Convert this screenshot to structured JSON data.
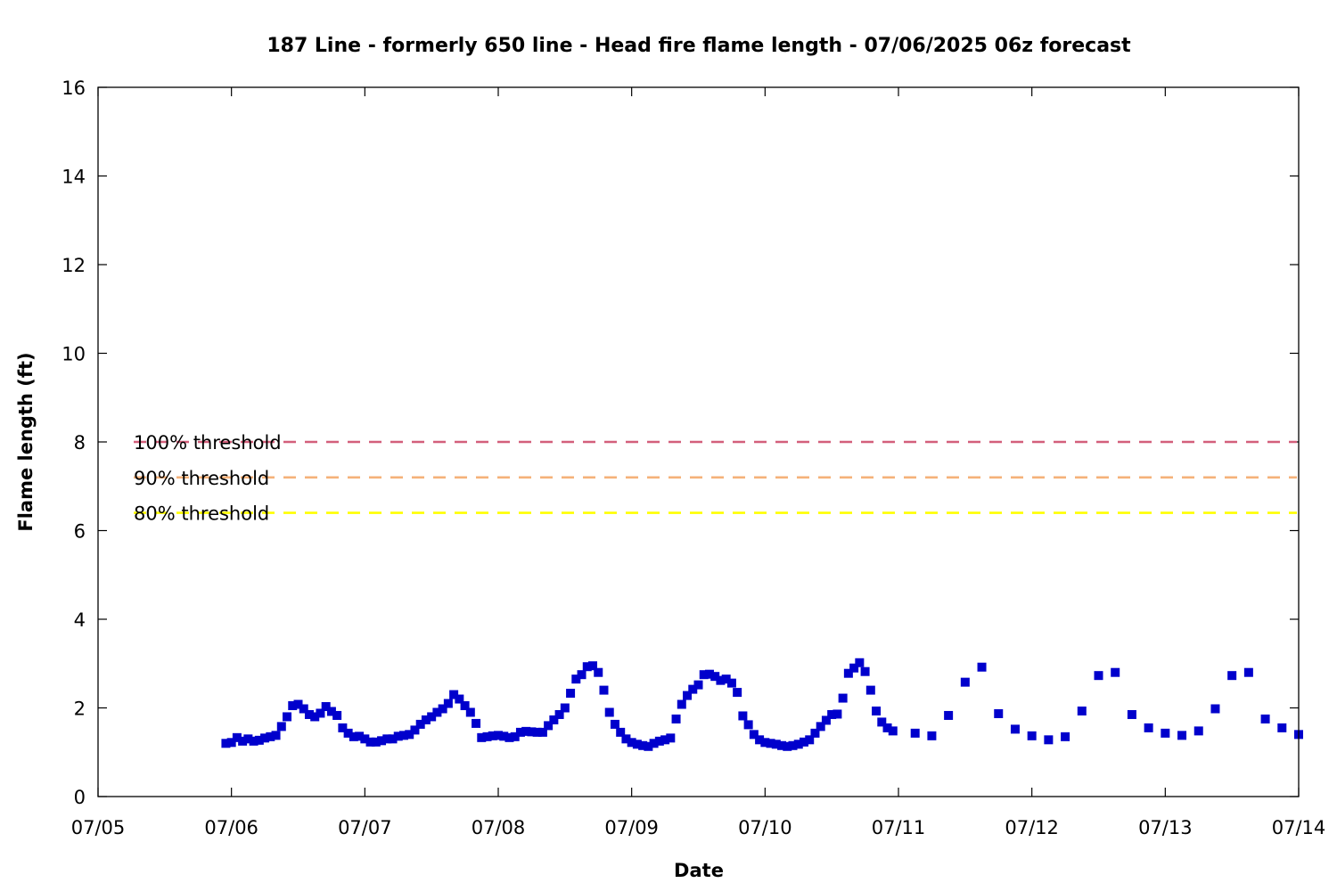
{
  "chart_data": {
    "type": "scatter",
    "title": "187 Line - formerly 650 line - Head fire flame length - 07/06/2025 06z forecast",
    "xlabel": "Date",
    "ylabel": "Flame length (ft)",
    "xlim": [
      "07/05 00z",
      "07/14 00z"
    ],
    "ylim": [
      0,
      16
    ],
    "x_tick_labels": [
      "07/05",
      "07/06",
      "07/07",
      "07/08",
      "07/09",
      "07/10",
      "07/11",
      "07/12",
      "07/13",
      "07/14"
    ],
    "y_tick_labels": [
      "0",
      "2",
      "4",
      "6",
      "8",
      "10",
      "12",
      "14",
      "16"
    ],
    "y_ticks": [
      0,
      2,
      4,
      6,
      8,
      10,
      12,
      14,
      16
    ],
    "grid": false,
    "thresholds": [
      {
        "label": "100% threshold",
        "value": 8.0,
        "color": "#d35f7b"
      },
      {
        "label": "90% threshold",
        "value": 7.2,
        "color": "#f5b27a"
      },
      {
        "label": "80% threshold",
        "value": 6.4,
        "color": "#ffff00"
      }
    ],
    "series": [
      {
        "color": "#0000cc",
        "marker": "square",
        "x_dates": [
          "07/05 23z",
          "07/06 00z",
          "07/06 01z",
          "07/06 02z",
          "07/06 03z",
          "07/06 04z",
          "07/06 05z",
          "07/06 06z",
          "07/06 07z",
          "07/06 08z",
          "07/06 09z",
          "07/06 10z",
          "07/06 11z",
          "07/06 12z",
          "07/06 13z",
          "07/06 14z",
          "07/06 15z",
          "07/06 16z",
          "07/06 17z",
          "07/06 18z",
          "07/06 19z",
          "07/06 20z",
          "07/06 21z",
          "07/06 22z",
          "07/06 23z",
          "07/07 00z",
          "07/07 01z",
          "07/07 02z",
          "07/07 03z",
          "07/07 04z",
          "07/07 05z",
          "07/07 06z",
          "07/07 07z",
          "07/07 08z",
          "07/07 09z",
          "07/07 10z",
          "07/07 11z",
          "07/07 12z",
          "07/07 13z",
          "07/07 14z",
          "07/07 15z",
          "07/07 16z",
          "07/07 17z",
          "07/07 18z",
          "07/07 19z",
          "07/07 20z",
          "07/07 21z",
          "07/07 22z",
          "07/07 23z",
          "07/08 00z",
          "07/08 01z",
          "07/08 02z",
          "07/08 03z",
          "07/08 04z",
          "07/08 05z",
          "07/08 06z",
          "07/08 07z",
          "07/08 08z",
          "07/08 09z",
          "07/08 10z",
          "07/08 11z",
          "07/08 12z",
          "07/08 13z",
          "07/08 14z",
          "07/08 15z",
          "07/08 16z",
          "07/08 17z",
          "07/08 18z",
          "07/08 19z",
          "07/08 20z",
          "07/08 21z",
          "07/08 22z",
          "07/08 23z",
          "07/09 00z",
          "07/09 01z",
          "07/09 02z",
          "07/09 03z",
          "07/09 04z",
          "07/09 05z",
          "07/09 06z",
          "07/09 07z",
          "07/09 08z",
          "07/09 09z",
          "07/09 10z",
          "07/09 11z",
          "07/09 12z",
          "07/09 13z",
          "07/09 14z",
          "07/09 15z",
          "07/09 16z",
          "07/09 17z",
          "07/09 18z",
          "07/09 19z",
          "07/09 20z",
          "07/09 21z",
          "07/09 22z",
          "07/09 23z",
          "07/10 00z",
          "07/10 01z",
          "07/10 02z",
          "07/10 03z",
          "07/10 04z",
          "07/10 05z",
          "07/10 06z",
          "07/10 07z",
          "07/10 08z",
          "07/10 09z",
          "07/10 10z",
          "07/10 11z",
          "07/10 12z",
          "07/10 13z",
          "07/10 14z",
          "07/10 15z",
          "07/10 16z",
          "07/10 17z",
          "07/10 18z",
          "07/10 19z",
          "07/10 20z",
          "07/10 21z",
          "07/10 22z",
          "07/10 23z",
          "07/11 03z",
          "07/11 06z",
          "07/11 09z",
          "07/11 12z",
          "07/11 15z",
          "07/11 18z",
          "07/11 21z",
          "07/12 00z",
          "07/12 03z",
          "07/12 06z",
          "07/12 09z",
          "07/12 12z",
          "07/12 15z",
          "07/12 18z",
          "07/12 21z",
          "07/13 00z",
          "07/13 03z",
          "07/13 06z",
          "07/13 09z",
          "07/13 12z",
          "07/13 15z",
          "07/13 18z",
          "07/13 21z",
          "07/14 00z"
        ],
        "values": [
          1.2,
          1.22,
          1.33,
          1.25,
          1.3,
          1.25,
          1.27,
          1.32,
          1.35,
          1.38,
          1.58,
          1.8,
          2.05,
          2.08,
          1.98,
          1.85,
          1.8,
          1.88,
          2.03,
          1.92,
          1.83,
          1.55,
          1.43,
          1.35,
          1.36,
          1.3,
          1.23,
          1.23,
          1.26,
          1.3,
          1.3,
          1.36,
          1.38,
          1.4,
          1.5,
          1.63,
          1.73,
          1.8,
          1.9,
          1.98,
          2.1,
          2.3,
          2.2,
          2.05,
          1.9,
          1.65,
          1.33,
          1.35,
          1.37,
          1.38,
          1.36,
          1.33,
          1.35,
          1.45,
          1.47,
          1.46,
          1.45,
          1.45,
          1.6,
          1.73,
          1.85,
          2.0,
          2.33,
          2.65,
          2.75,
          2.93,
          2.95,
          2.8,
          2.4,
          1.9,
          1.63,
          1.45,
          1.3,
          1.22,
          1.18,
          1.15,
          1.13,
          1.2,
          1.25,
          1.28,
          1.32,
          1.75,
          2.08,
          2.28,
          2.42,
          2.52,
          2.75,
          2.76,
          2.71,
          2.62,
          2.65,
          2.56,
          2.35,
          1.82,
          1.62,
          1.4,
          1.28,
          1.22,
          1.2,
          1.18,
          1.15,
          1.13,
          1.15,
          1.18,
          1.23,
          1.28,
          1.43,
          1.58,
          1.72,
          1.85,
          1.86,
          2.22,
          2.78,
          2.9,
          3.02,
          2.82,
          2.4,
          1.93,
          1.68,
          1.55,
          1.48,
          1.43,
          1.37,
          1.83,
          2.58,
          2.92,
          1.87,
          1.52,
          1.37,
          1.28,
          1.35,
          1.93,
          2.73,
          2.8,
          1.85,
          1.55,
          1.43,
          1.38,
          1.48,
          1.98,
          2.73,
          2.8,
          1.75,
          1.55,
          1.4
        ]
      }
    ]
  }
}
